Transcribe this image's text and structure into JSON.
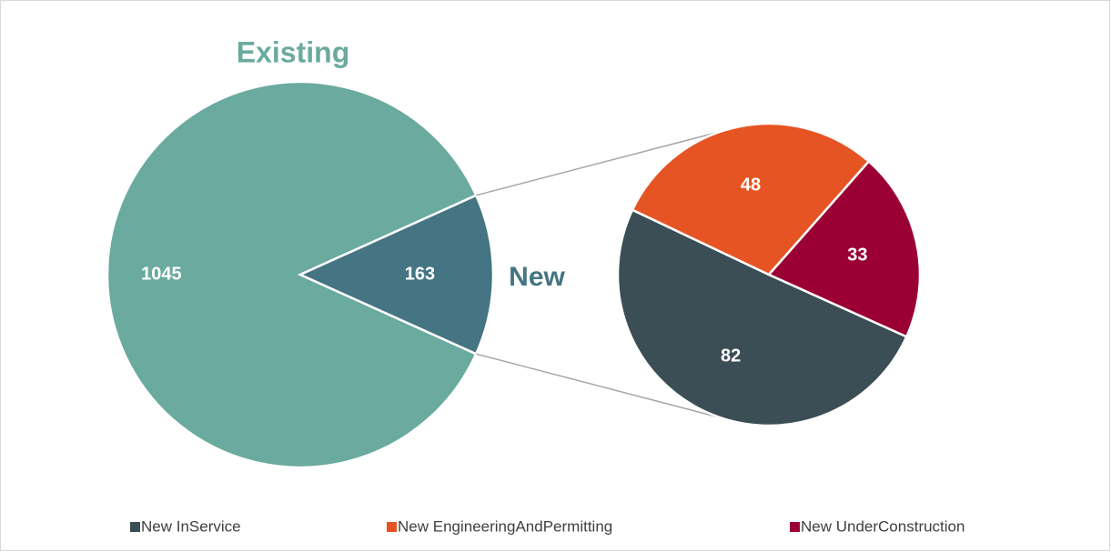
{
  "chart_data": {
    "type": "pie",
    "categories": [
      "Existing",
      "New"
    ],
    "values": [
      1045,
      163
    ],
    "colors": [
      "#6aaa9f",
      "#457483"
    ],
    "breakdown": {
      "categories": [
        "New InService",
        "New EngineeringAndPermitting",
        "New UnderConstruction"
      ],
      "values": [
        82,
        48,
        33
      ],
      "colors": [
        "#3b4d55",
        "#e65423",
        "#9b0035"
      ]
    },
    "legend": "bottom"
  }
}
